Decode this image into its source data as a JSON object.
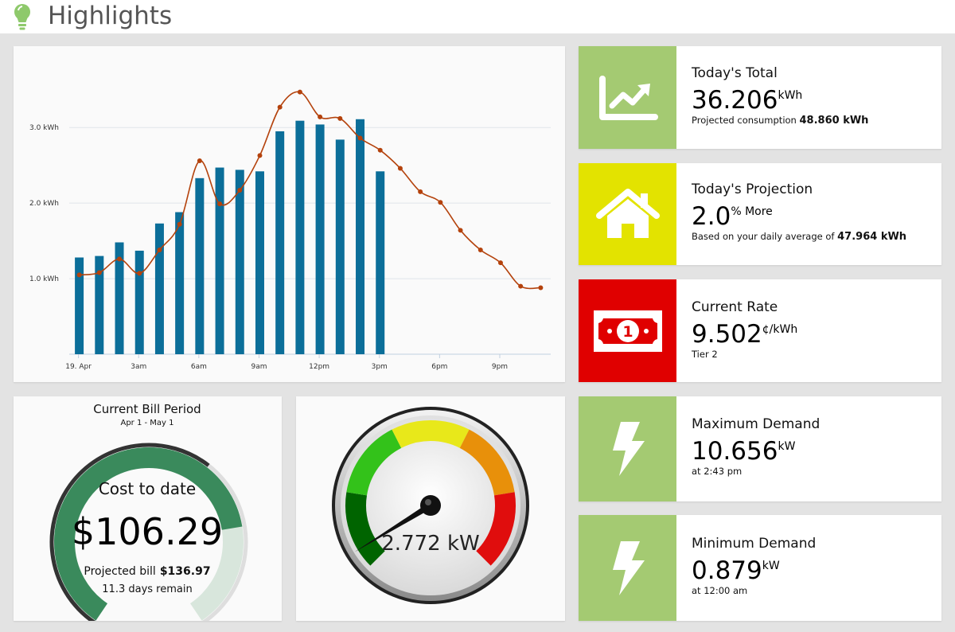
{
  "header": {
    "title": "Highlights",
    "icon": "lightbulb-icon",
    "accent": "#8ec96b"
  },
  "chart_data": {
    "type": "bar",
    "title": "",
    "xlabel": "",
    "ylabel": "",
    "y_ticks": [
      {
        "value": 1.0,
        "label": "1.0 kWh"
      },
      {
        "value": 2.0,
        "label": "2.0 kWh"
      },
      {
        "value": 3.0,
        "label": "3.0 kWh"
      }
    ],
    "ylim": [
      0,
      3.55
    ],
    "x_ticks": [
      {
        "hour": 0,
        "label": "19. Apr"
      },
      {
        "hour": 3,
        "label": "3am"
      },
      {
        "hour": 6,
        "label": "6am"
      },
      {
        "hour": 9,
        "label": "9am"
      },
      {
        "hour": 12,
        "label": "12pm"
      },
      {
        "hour": 15,
        "label": "3pm"
      },
      {
        "hour": 18,
        "label": "6pm"
      },
      {
        "hour": 21,
        "label": "9pm"
      }
    ],
    "xlim": [
      -0.5,
      23.5
    ],
    "series": [
      {
        "type": "bar",
        "color": "#0b6e99",
        "hours": [
          0,
          1,
          2,
          3,
          4,
          5,
          6,
          7,
          8,
          9,
          10,
          11,
          12,
          13,
          14,
          15
        ],
        "values": [
          1.28,
          1.3,
          1.48,
          1.37,
          1.73,
          1.88,
          2.33,
          2.47,
          2.44,
          2.42,
          2.95,
          3.09,
          3.04,
          2.84,
          3.11,
          2.42
        ]
      },
      {
        "type": "line",
        "color": "#b4420c",
        "hours": [
          0,
          1,
          2,
          3,
          4,
          5,
          6,
          7,
          8,
          9,
          10,
          11,
          12,
          13,
          14,
          15,
          16,
          17,
          18,
          19,
          20,
          21,
          22,
          23
        ],
        "values": [
          1.05,
          1.08,
          1.26,
          1.07,
          1.38,
          1.72,
          2.56,
          1.99,
          2.17,
          2.63,
          3.27,
          3.47,
          3.14,
          3.12,
          2.86,
          2.7,
          2.46,
          2.15,
          2.01,
          1.64,
          1.38,
          1.21,
          0.9,
          0.88
        ]
      }
    ]
  },
  "bill": {
    "title": "Current Bill Period",
    "period": "Apr 1 - May 1",
    "cost_label": "Cost to date",
    "cost": "$106.29",
    "projected_label": "Projected bill",
    "projected": "$136.97",
    "remaining": "11.3 days remain",
    "cost_value": 106.29,
    "projected_value": 136.97,
    "period_elapsed_fraction": 0.63,
    "colors": {
      "cost": "#3a8a5c",
      "projected": "#d8e6dc",
      "elapsed": "#333333"
    }
  },
  "demand_gauge": {
    "reading": "2.772 kW",
    "needle_fraction": 0.05,
    "band_colors": [
      "#006400",
      "#33c21a",
      "#e8e81a",
      "#e8900a",
      "#e00d0d"
    ]
  },
  "cards": [
    {
      "label": "Today's Total",
      "value": "36.206",
      "unit": "kWh",
      "sub_prefix": "Projected consumption",
      "sub_bold": "48.860 kWh",
      "icon": "trend-chart-icon",
      "color": "#a4ca72"
    },
    {
      "label": "Today's Projection",
      "value": "2.0",
      "unit": "% More",
      "sub_prefix": "Based on your daily average of",
      "sub_bold": "47.964 kWh",
      "icon": "house-icon",
      "color": "#e3e300"
    },
    {
      "label": "Current Rate",
      "value": "9.502",
      "unit": "¢/kWh",
      "sub_prefix": "Tier 2",
      "sub_bold": "",
      "icon": "banknote-icon",
      "color": "#e00000"
    },
    {
      "label": "Maximum Demand",
      "value": "10.656",
      "unit": "kW",
      "sub_prefix": "at 2:43 pm",
      "sub_bold": "",
      "icon": "lightning-icon",
      "color": "#a4ca72"
    },
    {
      "label": "Minimum Demand",
      "value": "0.879",
      "unit": "kW",
      "sub_prefix": "at 12:00 am",
      "sub_bold": "",
      "icon": "lightning-icon",
      "color": "#a4ca72"
    }
  ]
}
